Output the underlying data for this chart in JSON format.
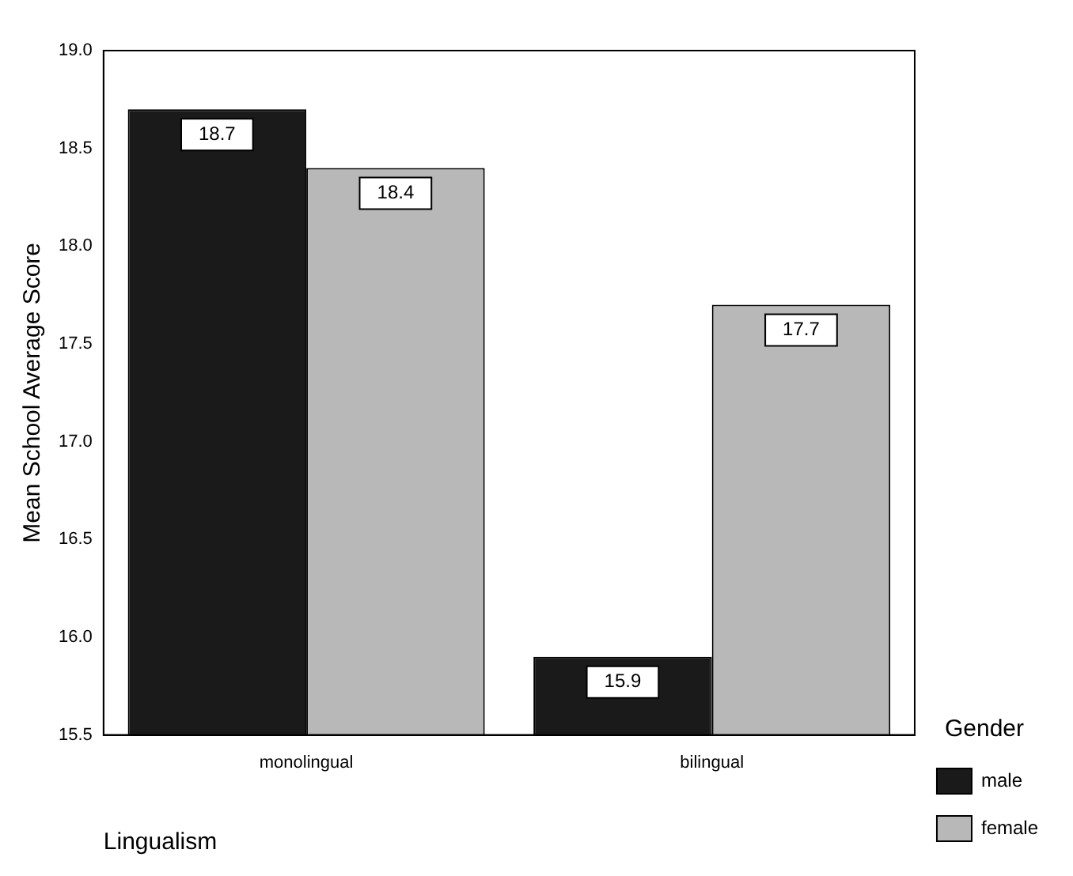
{
  "chart_data": {
    "type": "bar",
    "xlabel": "Lingualism",
    "ylabel": "Mean School Average Score",
    "legend_title": "Gender",
    "categories": [
      "monolingual",
      "bilingual"
    ],
    "series": [
      {
        "name": "male",
        "color": "#1a1a1a",
        "values": [
          18.7,
          15.9
        ]
      },
      {
        "name": "female",
        "color": "#b8b8b8",
        "values": [
          18.4,
          17.7
        ]
      }
    ],
    "ylim": [
      15.5,
      19.0
    ],
    "yticks": [
      {
        "value": 15.5,
        "label": "15.5"
      },
      {
        "value": 16,
        "label": "16.0"
      },
      {
        "value": 16.5,
        "label": "16.5"
      },
      {
        "value": 17,
        "label": "17.0"
      },
      {
        "value": 17.5,
        "label": "17.5"
      },
      {
        "value": 18,
        "label": "18.0"
      },
      {
        "value": 18.5,
        "label": "18.5"
      },
      {
        "value": 19,
        "label": "19.0"
      }
    ],
    "grid": false,
    "legend": "right",
    "data_labels": true
  }
}
